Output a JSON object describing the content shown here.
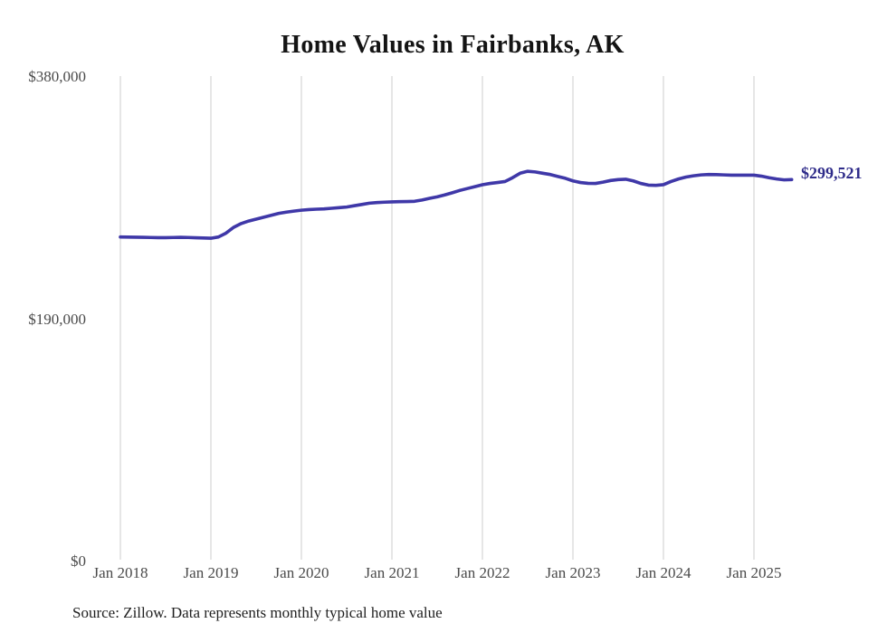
{
  "title": "Home Values in Fairbanks, AK",
  "end_label": "$299,521",
  "source_note": "Source: Zillow. Data represents monthly typical home value",
  "colors": {
    "line": "#3f38a8",
    "end_label": "#2f2c8a",
    "grid": "#cccccc",
    "tick_text": "#4a4a4a",
    "title_text": "#141414",
    "source_text": "#1f1f1f",
    "background": "#ffffff"
  },
  "chart_data": {
    "type": "line",
    "title": "Home Values in Fairbanks, AK",
    "xlabel": "",
    "ylabel": "",
    "ylim": [
      0,
      380000
    ],
    "grid": "vertical-only",
    "legend_position": "none",
    "frequency": "monthly",
    "start_month": "Jan 2018",
    "end_month": "Jun 2025",
    "final_value": 299521,
    "y_ticks": [
      {
        "label": "$0",
        "value": 0
      },
      {
        "label": "$190,000",
        "value": 190000
      },
      {
        "label": "$380,000",
        "value": 380000
      }
    ],
    "x_ticks": [
      "Jan 2018",
      "Jan 2019",
      "Jan 2020",
      "Jan 2021",
      "Jan 2022",
      "Jan 2023",
      "Jan 2024",
      "Jan 2025"
    ],
    "series": [
      {
        "name": "Typical home value",
        "values": [
          254500,
          254400,
          254300,
          254200,
          254100,
          254000,
          254000,
          254100,
          254200,
          254100,
          253900,
          253700,
          253500,
          254500,
          257500,
          262000,
          265000,
          267000,
          268500,
          270000,
          271500,
          273000,
          274000,
          274800,
          275500,
          276000,
          276300,
          276500,
          277000,
          277500,
          278000,
          279000,
          280000,
          281000,
          281500,
          281800,
          282000,
          282200,
          282300,
          282500,
          283500,
          284800,
          286000,
          287500,
          289200,
          291000,
          292500,
          294000,
          295500,
          296500,
          297200,
          298000,
          301000,
          304500,
          306000,
          305500,
          304500,
          303500,
          302000,
          300500,
          298500,
          297200,
          296600,
          296500,
          297500,
          298800,
          299500,
          299800,
          298500,
          296500,
          295200,
          295000,
          295500,
          298000,
          300000,
          301500,
          302500,
          303200,
          303500,
          303400,
          303200,
          303000,
          303000,
          303000,
          303000,
          302200,
          301000,
          300000,
          299300,
          299521
        ]
      }
    ]
  }
}
